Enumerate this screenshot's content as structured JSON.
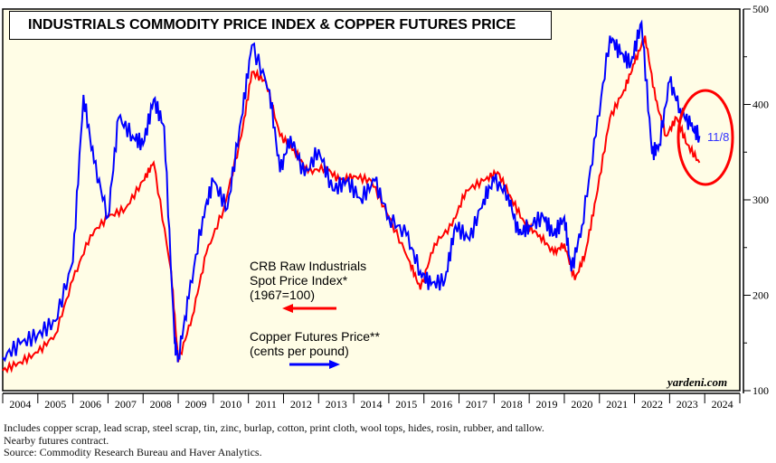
{
  "chart_data": {
    "type": "line",
    "title": "INDUSTRIALS COMMODITY PRICE INDEX & COPPER FUTURES PRICE",
    "x_ticks": [
      "2004",
      "2005",
      "2006",
      "2007",
      "2008",
      "2009",
      "2010",
      "2011",
      "2012",
      "2013",
      "2014",
      "2015",
      "2016",
      "2017",
      "2018",
      "2019",
      "2020",
      "2021",
      "2022",
      "2023",
      "2024"
    ],
    "y_right": {
      "range": [
        100,
        500
      ],
      "ticks": [
        "100",
        "200",
        "300",
        "400",
        "500"
      ]
    },
    "annotation": "11/8",
    "source_tag": "yardeni.com",
    "grid": false,
    "series": [
      {
        "name": "CRB Raw Industrials Spot Price Index* (1967=100)",
        "label_lines": [
          "CRB Raw Industrials",
          "Spot Price Index*",
          "(1967=100)"
        ],
        "axis": "left",
        "color": "#ff0000",
        "x": [
          2004.0,
          2004.5,
          2005.0,
          2005.5,
          2006.0,
          2006.5,
          2007.0,
          2007.5,
          2008.0,
          2008.3,
          2008.8,
          2009.0,
          2009.4,
          2009.8,
          2010.3,
          2010.8,
          2011.1,
          2011.5,
          2011.9,
          2012.3,
          2012.7,
          2013.2,
          2013.6,
          2014.0,
          2014.5,
          2015.0,
          2015.6,
          2015.9,
          2016.3,
          2016.8,
          2017.2,
          2017.7,
          2018.1,
          2018.5,
          2018.9,
          2019.3,
          2019.7,
          2020.0,
          2020.3,
          2020.6,
          2020.9,
          2021.3,
          2021.7,
          2022.0,
          2022.3,
          2022.6,
          2022.9,
          2023.2,
          2023.5,
          2023.85
        ],
        "y": [
          121,
          130,
          140,
          159,
          216,
          263,
          282,
          291,
          320,
          339,
          225,
          130,
          178,
          244,
          291,
          367,
          434,
          424,
          367,
          353,
          329,
          334,
          320,
          325,
          320,
          282,
          235,
          206,
          254,
          273,
          310,
          320,
          329,
          301,
          273,
          263,
          244,
          254,
          216,
          244,
          301,
          386,
          415,
          443,
          472,
          405,
          367,
          386,
          358,
          339
        ]
      },
      {
        "name": "Copper Futures Price** (cents per pound)",
        "label_lines": [
          "Copper Futures Price**",
          "(cents per pound)"
        ],
        "axis": "right",
        "color": "#0000ff",
        "x": [
          2004.0,
          2004.5,
          2005.0,
          2005.5,
          2006.0,
          2006.3,
          2006.6,
          2007.0,
          2007.3,
          2007.7,
          2008.0,
          2008.3,
          2008.6,
          2008.9,
          2009.0,
          2009.3,
          2009.7,
          2010.0,
          2010.4,
          2010.8,
          2011.1,
          2011.6,
          2011.9,
          2012.2,
          2012.6,
          2013.0,
          2013.4,
          2013.8,
          2014.2,
          2014.6,
          2015.0,
          2015.5,
          2015.9,
          2016.2,
          2016.6,
          2016.9,
          2017.3,
          2017.7,
          2018.0,
          2018.4,
          2018.7,
          2019.0,
          2019.4,
          2019.7,
          2020.0,
          2020.2,
          2020.5,
          2020.9,
          2021.3,
          2021.6,
          2021.9,
          2022.2,
          2022.5,
          2022.7,
          2023.0,
          2023.3,
          2023.6,
          2023.85
        ],
        "y": [
          135,
          149,
          159,
          173,
          235,
          410,
          339,
          282,
          386,
          367,
          358,
          405,
          377,
          149,
          135,
          197,
          282,
          320,
          291,
          386,
          462,
          415,
          329,
          367,
          325,
          353,
          310,
          320,
          301,
          320,
          282,
          263,
          225,
          211,
          216,
          273,
          258,
          301,
          320,
          306,
          263,
          273,
          282,
          263,
          282,
          225,
          273,
          367,
          472,
          453,
          443,
          486,
          348,
          358,
          424,
          396,
          377,
          367
        ]
      }
    ],
    "footnotes": [
      "Includes copper scrap, lead scrap, steel scrap, tin, zinc, burlap, cotton, print cloth, wool tops, hides, rosin, rubber, and tallow.",
      "Nearby futures contract.",
      "Source: Commodity Research Bureau and Haver Analytics."
    ]
  }
}
